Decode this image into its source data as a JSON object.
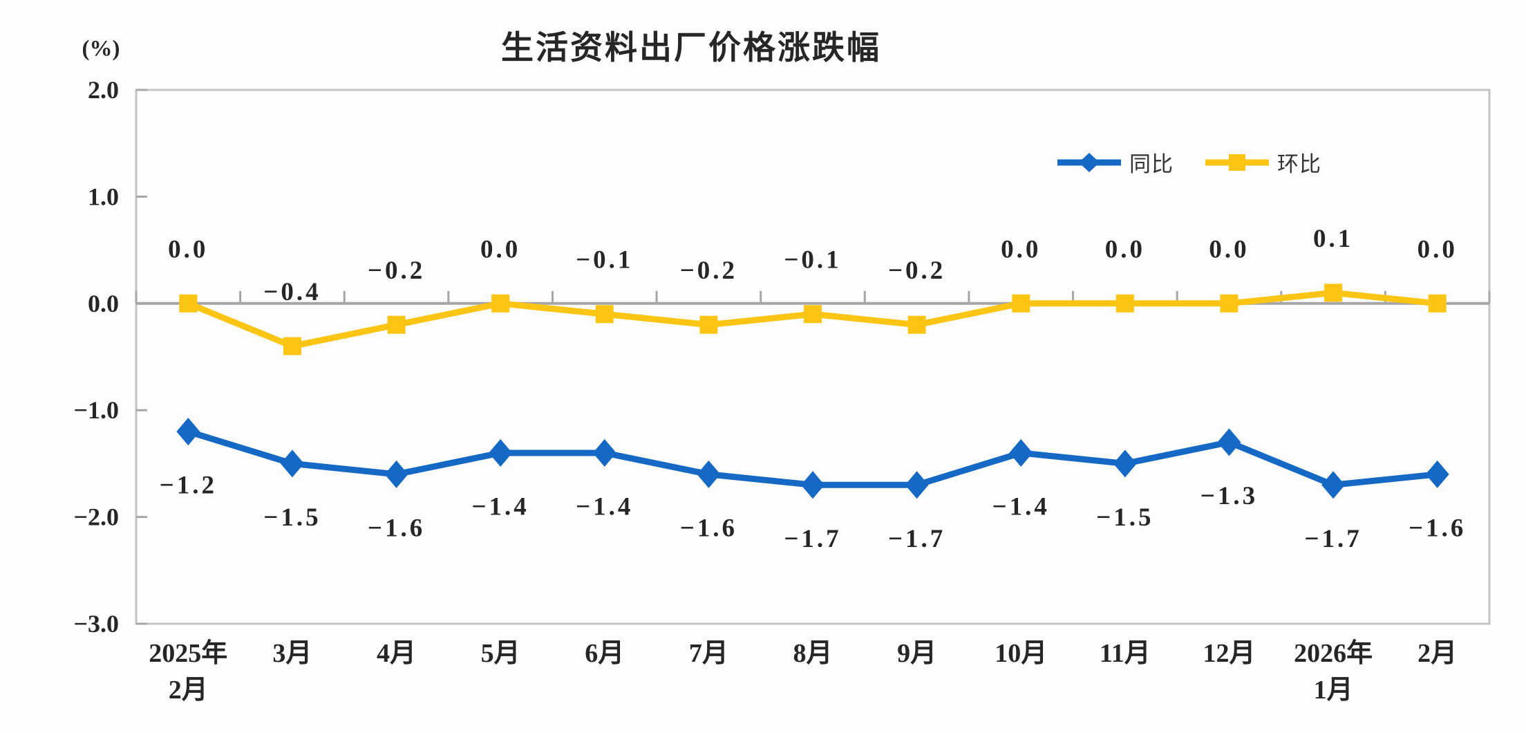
{
  "chart_data": {
    "type": "line",
    "title": "生活资料出厂价格涨跌幅",
    "ylabel_unit": "(%)",
    "categories": [
      "2025年\n2月",
      "3月",
      "4月",
      "5月",
      "6月",
      "7月",
      "8月",
      "9月",
      "10月",
      "11月",
      "12月",
      "2026年\n1月",
      "2月"
    ],
    "series": [
      {
        "name": "同比",
        "color": "#1569C4",
        "marker": "diamond",
        "label_position": "below",
        "values": [
          -1.2,
          -1.5,
          -1.6,
          -1.4,
          -1.4,
          -1.6,
          -1.7,
          -1.7,
          -1.4,
          -1.5,
          -1.3,
          -1.7,
          -1.6
        ]
      },
      {
        "name": "环比",
        "color": "#FCC514",
        "marker": "square",
        "label_position": "above",
        "values": [
          0.0,
          -0.4,
          -0.2,
          0.0,
          -0.1,
          -0.2,
          -0.1,
          -0.2,
          0.0,
          0.0,
          0.0,
          0.1,
          0.0
        ]
      }
    ],
    "ylim": [
      -3.0,
      2.0
    ],
    "ytick_step": 1.0,
    "ytick_labels": [
      "2.0",
      "1.0",
      "0.0",
      "-1.0",
      "-2.0",
      "-3.0"
    ],
    "grid": "zero-line-only",
    "legend_position": "top-right-inside",
    "colors": {
      "zero_line": "#A6A6A6",
      "plot_border": "#C3C3C3",
      "tick": "#A6A6A6",
      "label_text": "#262626"
    }
  }
}
